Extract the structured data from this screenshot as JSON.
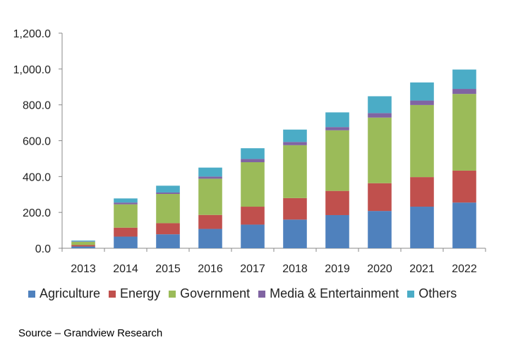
{
  "chart_data": {
    "type": "bar",
    "stacked": true,
    "categories": [
      "2013",
      "2014",
      "2015",
      "2016",
      "2017",
      "2018",
      "2019",
      "2020",
      "2021",
      "2022"
    ],
    "series": [
      {
        "name": "Agriculture",
        "color": "#4f81bd",
        "values": [
          10,
          65,
          78,
          108,
          132,
          160,
          185,
          208,
          232,
          255
        ]
      },
      {
        "name": "Energy",
        "color": "#c0504d",
        "values": [
          8,
          50,
          62,
          78,
          100,
          120,
          135,
          155,
          165,
          178
        ]
      },
      {
        "name": "Government",
        "color": "#9bbb59",
        "values": [
          18,
          130,
          163,
          202,
          248,
          295,
          338,
          366,
          402,
          428
        ]
      },
      {
        "name": "Media & Entertainment",
        "color": "#8064a2",
        "values": [
          2,
          10,
          8,
          12,
          18,
          18,
          18,
          25,
          25,
          28
        ]
      },
      {
        "name": "Others",
        "color": "#4bacc6",
        "values": [
          5,
          23,
          38,
          50,
          60,
          69,
          82,
          94,
          101,
          108
        ]
      }
    ],
    "yticks": [
      "0.0",
      "200.0",
      "400.0",
      "600.0",
      "800.0",
      "1,000.0",
      "1,200.0"
    ],
    "ylim": [
      0,
      1200
    ],
    "grid": false,
    "legend": "bottom",
    "source": "Source – Grandview Research"
  }
}
